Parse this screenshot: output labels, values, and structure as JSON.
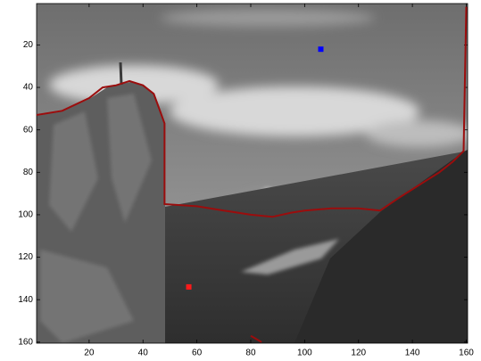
{
  "chart_data": {
    "type": "line",
    "ydir": "reverse",
    "xlim": [
      0.5,
      160.5
    ],
    "ylim": [
      0.5,
      160.5
    ],
    "xticks": [
      20,
      40,
      60,
      80,
      100,
      120,
      140,
      160
    ],
    "yticks": [
      20,
      40,
      60,
      80,
      100,
      120,
      140,
      160
    ],
    "series": [
      {
        "type": "line",
        "color": "#9b0d0d",
        "x": [
          0.5,
          10,
          20,
          25,
          30,
          35,
          40,
          44,
          46,
          48,
          48,
          60,
          70,
          80,
          88,
          95,
          100,
          110,
          120,
          128,
          135,
          140,
          145,
          150,
          155,
          159,
          160,
          null,
          80,
          84
        ],
        "values": [
          53,
          51,
          45,
          40,
          39,
          37,
          39,
          43,
          50,
          57,
          95,
          96,
          98,
          100,
          101,
          99,
          98,
          97,
          97,
          98,
          92,
          88,
          84,
          80,
          75,
          70,
          2,
          null,
          157,
          160
        ]
      },
      {
        "type": "scatter",
        "color": "#0000ff",
        "x": [
          106
        ],
        "values": [
          22
        ]
      },
      {
        "type": "scatter",
        "color": "#ff1a1a",
        "x": [
          57
        ],
        "values": [
          134
        ]
      }
    ]
  }
}
